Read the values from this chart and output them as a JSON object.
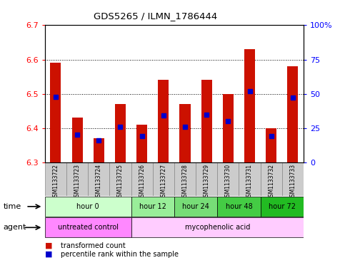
{
  "title": "GDS5265 / ILMN_1786444",
  "samples": [
    "GSM1133722",
    "GSM1133723",
    "GSM1133724",
    "GSM1133725",
    "GSM1133726",
    "GSM1133727",
    "GSM1133728",
    "GSM1133729",
    "GSM1133730",
    "GSM1133731",
    "GSM1133732",
    "GSM1133733"
  ],
  "transformed_counts": [
    6.59,
    6.43,
    6.37,
    6.47,
    6.41,
    6.54,
    6.47,
    6.54,
    6.5,
    6.63,
    6.4,
    6.58
  ],
  "percentile_ranks": [
    48,
    20,
    16,
    26,
    19,
    34,
    26,
    35,
    30,
    52,
    19,
    47
  ],
  "ymin": 6.3,
  "ymax": 6.7,
  "y_ticks": [
    6.3,
    6.4,
    6.5,
    6.6,
    6.7
  ],
  "y2min": 0,
  "y2max": 100,
  "y2_ticks": [
    0,
    25,
    50,
    75,
    100
  ],
  "y2_tick_labels": [
    "0",
    "25",
    "50",
    "75",
    "100%"
  ],
  "time_groups": [
    {
      "label": "hour 0",
      "start": 0,
      "end": 4,
      "color": "#ccffcc"
    },
    {
      "label": "hour 12",
      "start": 4,
      "end": 6,
      "color": "#99ee99"
    },
    {
      "label": "hour 24",
      "start": 6,
      "end": 8,
      "color": "#77dd77"
    },
    {
      "label": "hour 48",
      "start": 8,
      "end": 10,
      "color": "#44cc44"
    },
    {
      "label": "hour 72",
      "start": 10,
      "end": 12,
      "color": "#22bb22"
    }
  ],
  "agent_groups": [
    {
      "label": "untreated control",
      "start": 0,
      "end": 4,
      "color": "#ff88ff"
    },
    {
      "label": "mycophenolic acid",
      "start": 4,
      "end": 12,
      "color": "#ffccff"
    }
  ],
  "bar_color": "#cc1100",
  "percentile_color": "#0000cc",
  "bar_width": 0.5,
  "plot_bg": "#ffffff",
  "xticklabel_bg": "#cccccc",
  "legend_items": [
    {
      "label": "transformed count",
      "color": "#cc1100"
    },
    {
      "label": "percentile rank within the sample",
      "color": "#0000cc"
    }
  ]
}
